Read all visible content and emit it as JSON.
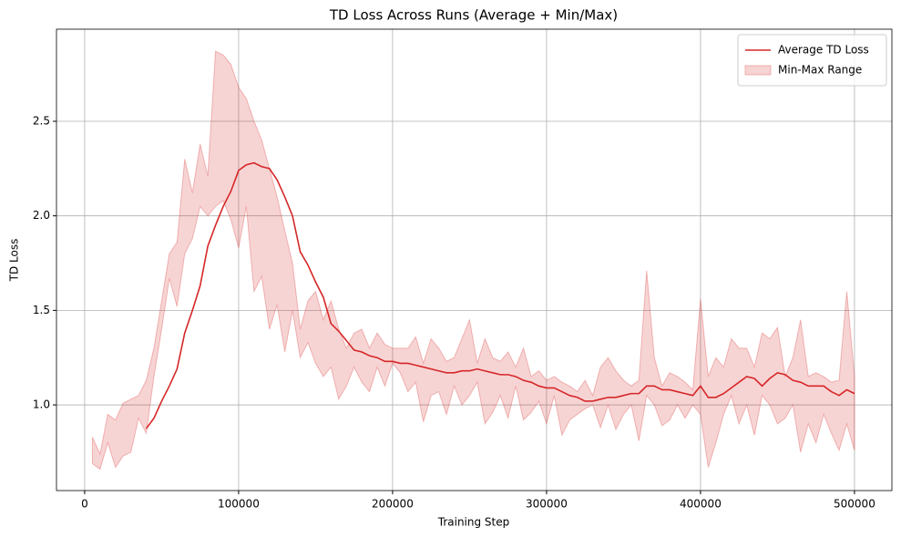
{
  "chart_data": {
    "type": "line",
    "title": "TD Loss Across Runs (Average + Min/Max)",
    "x_label": "Training Step",
    "y_label": "TD Loss",
    "xlim": [
      -18300,
      524300
    ],
    "ylim": [
      0.547,
      2.987
    ],
    "xticks": [
      0,
      100000,
      200000,
      300000,
      400000,
      500000
    ],
    "yticks": [
      {
        "value": 1,
        "label": "1.0"
      },
      1.5,
      {
        "value": 2,
        "label": "2.0"
      },
      2.5
    ],
    "grid": true,
    "legend": "upper right",
    "x": [
      5000,
      10000,
      15000,
      20000,
      25000,
      30000,
      35000,
      40000,
      45000,
      50000,
      55000,
      60000,
      65000,
      70000,
      75000,
      80000,
      85000,
      90000,
      95000,
      100000,
      105000,
      110000,
      115000,
      120000,
      125000,
      130000,
      135000,
      140000,
      145000,
      150000,
      155000,
      160000,
      165000,
      170000,
      175000,
      180000,
      185000,
      190000,
      195000,
      200000,
      205000,
      210000,
      215000,
      220000,
      225000,
      230000,
      235000,
      240000,
      245000,
      250000,
      255000,
      260000,
      265000,
      270000,
      275000,
      280000,
      285000,
      290000,
      295000,
      300000,
      305000,
      310000,
      315000,
      320000,
      325000,
      330000,
      335000,
      340000,
      345000,
      350000,
      355000,
      360000,
      365000,
      370000,
      375000,
      380000,
      385000,
      390000,
      395000,
      400000,
      405000,
      410000,
      415000,
      420000,
      425000,
      430000,
      435000,
      440000,
      445000,
      450000,
      455000,
      460000,
      465000,
      470000,
      475000,
      480000,
      485000,
      490000,
      495000,
      500000
    ],
    "series": [
      {
        "name": "Average TD Loss",
        "color": "#d62728",
        "values": [
          null,
          null,
          null,
          null,
          null,
          null,
          null,
          0.875,
          0.93,
          1.02,
          1.1,
          1.19,
          1.38,
          1.5,
          1.63,
          1.84,
          1.95,
          2.05,
          2.13,
          2.24,
          2.27,
          2.28,
          2.26,
          2.25,
          2.19,
          2.1,
          2.0,
          1.81,
          1.74,
          1.65,
          1.57,
          1.43,
          1.39,
          1.34,
          1.29,
          1.28,
          1.26,
          1.25,
          1.23,
          1.23,
          1.22,
          1.22,
          1.21,
          1.2,
          1.19,
          1.18,
          1.17,
          1.17,
          1.18,
          1.18,
          1.19,
          1.18,
          1.17,
          1.16,
          1.16,
          1.15,
          1.13,
          1.12,
          1.1,
          1.09,
          1.09,
          1.07,
          1.05,
          1.04,
          1.02,
          1.02,
          1.03,
          1.04,
          1.04,
          1.05,
          1.06,
          1.06,
          1.1,
          1.1,
          1.08,
          1.08,
          1.07,
          1.06,
          1.05,
          1.1,
          1.04,
          1.04,
          1.06,
          1.09,
          1.12,
          1.15,
          1.14,
          1.1,
          1.14,
          1.17,
          1.16,
          1.13,
          1.12,
          1.1,
          1.1,
          1.1,
          1.07,
          1.05,
          1.08,
          1.06
        ]
      }
    ],
    "band": {
      "name": "Min-Max Range",
      "color": "#d62728",
      "fill_opacity": 0.2,
      "min": [
        0.69,
        0.66,
        0.8,
        0.67,
        0.73,
        0.75,
        0.93,
        0.85,
        1.15,
        1.4,
        1.67,
        1.52,
        1.8,
        1.88,
        2.05,
        2.0,
        2.05,
        2.08,
        1.98,
        1.83,
        2.05,
        1.6,
        1.68,
        1.4,
        1.53,
        1.28,
        1.5,
        1.25,
        1.33,
        1.22,
        1.15,
        1.2,
        1.03,
        1.1,
        1.2,
        1.12,
        1.07,
        1.2,
        1.1,
        1.22,
        1.17,
        1.07,
        1.12,
        0.91,
        1.05,
        1.07,
        0.95,
        1.1,
        1.0,
        1.05,
        1.12,
        0.9,
        0.96,
        1.05,
        0.93,
        1.1,
        0.92,
        0.96,
        1.02,
        0.9,
        1.05,
        0.84,
        0.92,
        0.95,
        0.98,
        1.0,
        0.88,
        1.0,
        0.87,
        0.95,
        1.0,
        0.81,
        1.05,
        1.0,
        0.89,
        0.92,
        1.0,
        0.93,
        1.0,
        0.95,
        0.67,
        0.8,
        0.95,
        1.05,
        0.9,
        1.0,
        0.84,
        1.05,
        1.0,
        0.9,
        0.93,
        1.0,
        0.75,
        0.9,
        0.8,
        0.95,
        0.85,
        0.76,
        0.9,
        0.76
      ],
      "max": [
        0.83,
        0.74,
        0.95,
        0.92,
        1.01,
        1.03,
        1.05,
        1.13,
        1.3,
        1.55,
        1.8,
        1.86,
        2.3,
        2.12,
        2.38,
        2.21,
        2.87,
        2.85,
        2.8,
        2.68,
        2.62,
        2.5,
        2.4,
        2.25,
        2.1,
        1.92,
        1.75,
        1.4,
        1.55,
        1.6,
        1.45,
        1.55,
        1.4,
        1.3,
        1.38,
        1.4,
        1.3,
        1.38,
        1.32,
        1.3,
        1.3,
        1.3,
        1.36,
        1.22,
        1.35,
        1.3,
        1.23,
        1.25,
        1.35,
        1.45,
        1.22,
        1.35,
        1.25,
        1.23,
        1.28,
        1.2,
        1.3,
        1.15,
        1.18,
        1.13,
        1.15,
        1.12,
        1.1,
        1.07,
        1.13,
        1.05,
        1.2,
        1.25,
        1.18,
        1.13,
        1.1,
        1.13,
        1.71,
        1.25,
        1.1,
        1.17,
        1.15,
        1.12,
        1.08,
        1.56,
        1.15,
        1.25,
        1.2,
        1.35,
        1.3,
        1.3,
        1.2,
        1.38,
        1.35,
        1.41,
        1.15,
        1.25,
        1.45,
        1.15,
        1.17,
        1.15,
        1.12,
        1.13,
        1.6,
        1.15
      ]
    }
  }
}
